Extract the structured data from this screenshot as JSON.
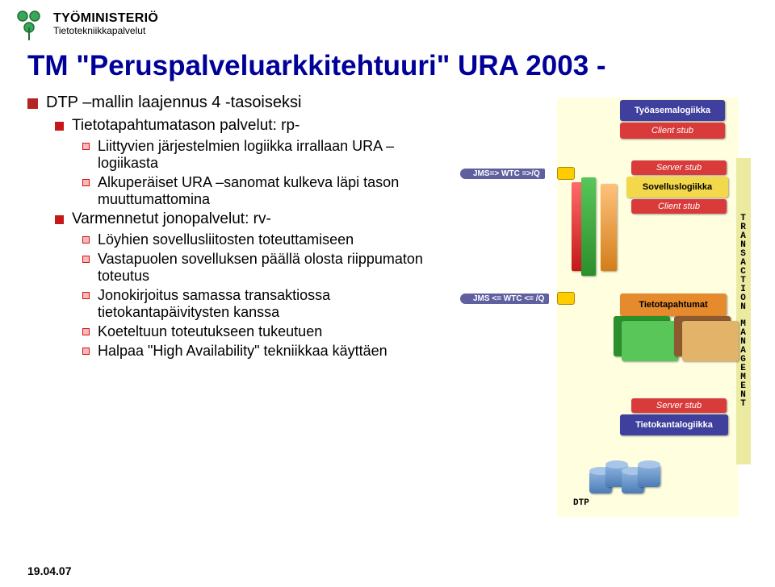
{
  "header": {
    "org_name": "TYÖMINISTERIÖ",
    "org_sub": "Tietotekniikkapalvelut"
  },
  "title": "TM \"Peruspalveluarkkitehtuuri\" URA 2003 -",
  "bullets": {
    "b1a": "DTP –mallin laajennus 4 -tasoiseksi",
    "b2a": "Tietotapahtumatason palvelut: rp-",
    "b3a": "Liittyvien järjestelmien logiikka irrallaan URA –logiikasta",
    "b3b": "Alkuperäiset URA –sanomat kulkeva läpi tason muuttumattomina",
    "b2b": "Varmennetut jonopalvelut: rv-",
    "b3c": "Löyhien sovellusliitosten toteuttamiseen",
    "b3d": "Vastapuolen sovelluksen päällä olosta riippumaton toteutus",
    "b3e": "Jonokirjoitus samassa transaktiossa tietokantapäivitysten kanssa",
    "b3f": "Koeteltuun toteutukseen tukeutuen",
    "b3g": "Halpaa \"High Availability\" tekniikkaa käyttäen"
  },
  "diagram": {
    "top_box": "Työasemalogiikka",
    "client_stub": "Client stub",
    "server_stub": "Server stub",
    "sovellus": "Sovelluslogiikka",
    "tieto_tapahtumat": "Tietotapahtumat",
    "tk_logiikka": "Tietokantalogiikka",
    "arrow_top": "JMS=> WTC =>/Q",
    "arrow_bot": "JMS <= WTC <= /Q",
    "dtp": "DTP",
    "vstrip": "TRANSACTION MANAGEMENT",
    "colors": {
      "navy": "#3f3f9d",
      "red": "#d93a3a",
      "yellow": "#f2d84a",
      "green_d": "#2b8f2b",
      "green_l": "#59c659",
      "tan": "#e3b36a",
      "orange": "#e68a2e",
      "brown_d": "#8c5a2e",
      "blue_title": "#000099"
    }
  },
  "footer": {
    "date": "19.04.07"
  }
}
